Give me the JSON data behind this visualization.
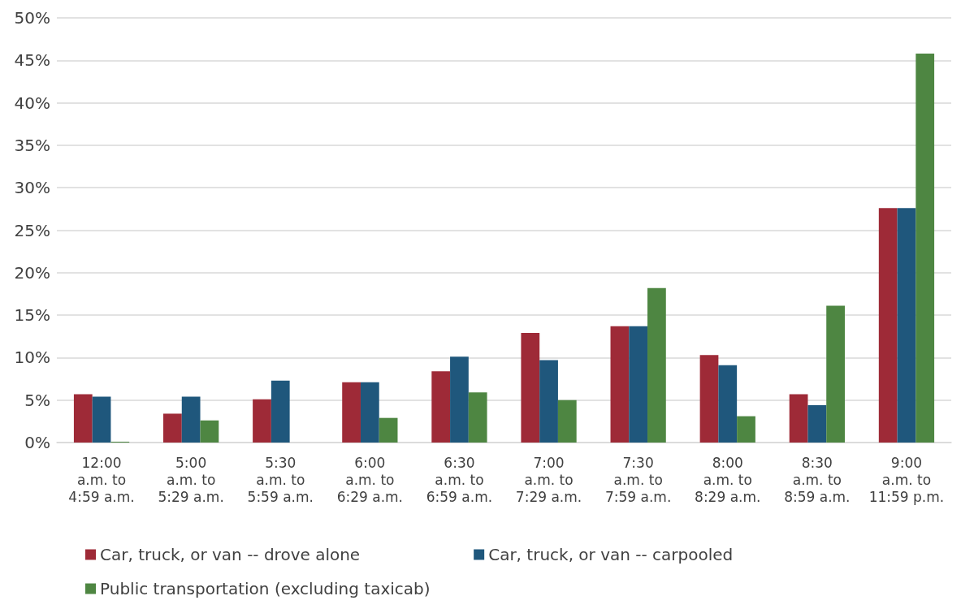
{
  "chart_data": {
    "type": "bar",
    "categories": [
      "12:00\na.m. to\n4:59 a.m.",
      "5:00\na.m. to\n5:29 a.m.",
      "5:30\na.m. to\n5:59 a.m.",
      "6:00\na.m. to\n6:29 a.m.",
      "6:30\na.m. to\n6:59 a.m.",
      "7:00\na.m. to\n7:29 a.m.",
      "7:30\na.m. to\n7:59 a.m.",
      "8:00\na.m. to\n8:29 a.m.",
      "8:30\na.m. to\n8:59 a.m.",
      "9:00\na.m. to\n11:59 p.m."
    ],
    "series": [
      {
        "name": "Car, truck, or van -- drove alone",
        "color": "#9e2a37",
        "values": [
          5.7,
          3.4,
          5.1,
          7.1,
          8.4,
          12.9,
          13.7,
          10.3,
          5.7,
          27.6
        ]
      },
      {
        "name": "Car, truck, or van -- carpooled",
        "color": "#1f577c",
        "values": [
          5.4,
          5.4,
          7.3,
          7.1,
          10.1,
          9.7,
          13.7,
          9.1,
          4.4,
          27.6
        ]
      },
      {
        "name": "Public transportation (excluding taxicab)",
        "color": "#4e8642",
        "values": [
          0.1,
          2.6,
          0,
          2.9,
          5.9,
          5.0,
          18.2,
          3.1,
          16.1,
          45.8
        ]
      }
    ],
    "ylim": [
      0,
      50
    ],
    "yticks": [
      {
        "value": 0,
        "label": "0%"
      },
      {
        "value": 5,
        "label": "5%"
      },
      {
        "value": 10,
        "label": "10%"
      },
      {
        "value": 15,
        "label": "15%"
      },
      {
        "value": 20,
        "label": "20%"
      },
      {
        "value": 25,
        "label": "25%"
      },
      {
        "value": 30,
        "label": "30%"
      },
      {
        "value": 35,
        "label": "35%"
      },
      {
        "value": 40,
        "label": "40%"
      },
      {
        "value": 45,
        "label": "45%"
      },
      {
        "value": 50,
        "label": "50%"
      }
    ],
    "grid": "y",
    "legend": "bottom"
  }
}
